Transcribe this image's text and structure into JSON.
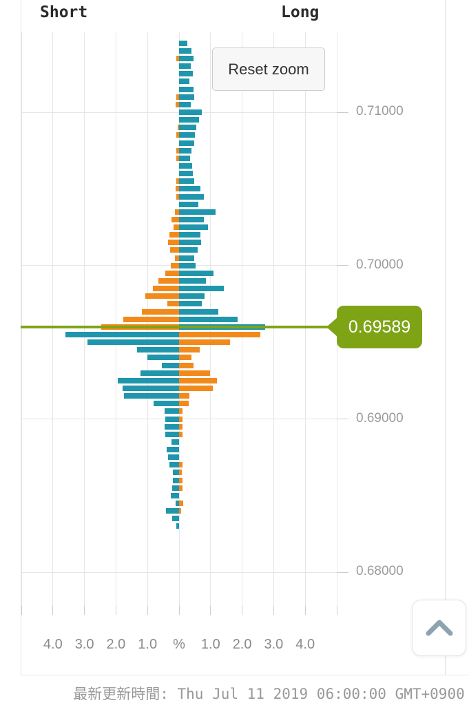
{
  "widget": {
    "reset_zoom_label": "Reset zoom",
    "footer_text": "最新更新時間: Thu Jul 11 2019 06:00:00 GMT+0900",
    "scroll_top_icon": "chevron-up"
  },
  "colors": {
    "teal": "#1f96ac",
    "orange": "#f28a1b",
    "price_green": "#7ea416",
    "grid": "#e5e5ea",
    "axis_text": "#8a8a8a",
    "label_text": "#2b2b2b"
  },
  "chart_data": {
    "type": "bar",
    "subtype": "horizontal-population-pyramid",
    "description": "Open positions ratio (%) by price level; left side = Short positions, right side = Long positions; colors follow win/lose rule around current price",
    "legend": {
      "short": "Short",
      "long": "Long"
    },
    "current_price": 0.69589,
    "current_price_label": "0.69589",
    "x_axis": {
      "unit": "%",
      "tick_labels": [
        "4.0",
        "3.0",
        "2.0",
        "1.0",
        "%",
        "1.0",
        "2.0",
        "3.0",
        "4.0"
      ],
      "tick_values": [
        -4,
        -3,
        -2,
        -1,
        0,
        1,
        2,
        3,
        4
      ],
      "range": [
        -5,
        5
      ],
      "grid": true
    },
    "y_axis": {
      "side": "right",
      "tick_labels": [
        "0.71000",
        "0.70000",
        "0.69000",
        "0.68000"
      ],
      "tick_values": [
        0.71,
        0.7,
        0.69,
        0.68
      ]
    },
    "color_rule": {
      "above_current_price": {
        "short": "orange",
        "long": "teal"
      },
      "below_current_price": {
        "short": "teal",
        "long": "orange"
      }
    },
    "rows": [
      {
        "price": 0.7145,
        "short_pct": 0,
        "long_pct": 0.26
      },
      {
        "price": 0.714,
        "short_pct": 0,
        "long_pct": 0.39
      },
      {
        "price": 0.7135,
        "short_pct": 0.09,
        "long_pct": 0.46
      },
      {
        "price": 0.713,
        "short_pct": 0,
        "long_pct": 0.37
      },
      {
        "price": 0.7125,
        "short_pct": 0,
        "long_pct": 0.44
      },
      {
        "price": 0.712,
        "short_pct": 0,
        "long_pct": 0.33
      },
      {
        "price": 0.7115,
        "short_pct": 0,
        "long_pct": 0.46
      },
      {
        "price": 0.711,
        "short_pct": 0.09,
        "long_pct": 0.48
      },
      {
        "price": 0.7105,
        "short_pct": 0.11,
        "long_pct": 0.37
      },
      {
        "price": 0.71,
        "short_pct": 0,
        "long_pct": 0.72
      },
      {
        "price": 0.7095,
        "short_pct": 0,
        "long_pct": 0.63
      },
      {
        "price": 0.709,
        "short_pct": 0.05,
        "long_pct": 0.55
      },
      {
        "price": 0.7085,
        "short_pct": 0.09,
        "long_pct": 0.5
      },
      {
        "price": 0.708,
        "short_pct": 0,
        "long_pct": 0.48
      },
      {
        "price": 0.7075,
        "short_pct": 0.09,
        "long_pct": 0.39
      },
      {
        "price": 0.707,
        "short_pct": 0.09,
        "long_pct": 0.35
      },
      {
        "price": 0.7065,
        "short_pct": 0,
        "long_pct": 0.41
      },
      {
        "price": 0.706,
        "short_pct": 0,
        "long_pct": 0.44
      },
      {
        "price": 0.7055,
        "short_pct": 0.09,
        "long_pct": 0.48
      },
      {
        "price": 0.705,
        "short_pct": 0.12,
        "long_pct": 0.68
      },
      {
        "price": 0.7045,
        "short_pct": 0.09,
        "long_pct": 0.79
      },
      {
        "price": 0.704,
        "short_pct": 0,
        "long_pct": 0.61
      },
      {
        "price": 0.7035,
        "short_pct": 0.14,
        "long_pct": 1.16
      },
      {
        "price": 0.703,
        "short_pct": 0.25,
        "long_pct": 0.79
      },
      {
        "price": 0.7025,
        "short_pct": 0.18,
        "long_pct": 0.92
      },
      {
        "price": 0.702,
        "short_pct": 0.31,
        "long_pct": 0.68
      },
      {
        "price": 0.7015,
        "short_pct": 0.36,
        "long_pct": 0.7
      },
      {
        "price": 0.701,
        "short_pct": 0.28,
        "long_pct": 0.59
      },
      {
        "price": 0.7005,
        "short_pct": 0.13,
        "long_pct": 0.48
      },
      {
        "price": 0.7,
        "short_pct": 0.27,
        "long_pct": 0.52
      },
      {
        "price": 0.6995,
        "short_pct": 0.44,
        "long_pct": 1.09
      },
      {
        "price": 0.699,
        "short_pct": 0.65,
        "long_pct": 0.85
      },
      {
        "price": 0.6985,
        "short_pct": 0.83,
        "long_pct": 1.42
      },
      {
        "price": 0.698,
        "short_pct": 1.07,
        "long_pct": 0.81
      },
      {
        "price": 0.6975,
        "short_pct": 0.37,
        "long_pct": 0.72
      },
      {
        "price": 0.697,
        "short_pct": 1.18,
        "long_pct": 1.25
      },
      {
        "price": 0.6965,
        "short_pct": 1.77,
        "long_pct": 1.86
      },
      {
        "price": 0.696,
        "short_pct": 2.47,
        "long_pct": 2.73
      },
      {
        "price": 0.6955,
        "short_pct": 3.6,
        "long_pct": 2.58
      },
      {
        "price": 0.695,
        "short_pct": 2.9,
        "long_pct": 1.62
      },
      {
        "price": 0.6945,
        "short_pct": 1.33,
        "long_pct": 0.66
      },
      {
        "price": 0.694,
        "short_pct": 1.0,
        "long_pct": 0.39
      },
      {
        "price": 0.6935,
        "short_pct": 0.55,
        "long_pct": 0.46
      },
      {
        "price": 0.693,
        "short_pct": 1.22,
        "long_pct": 0.98
      },
      {
        "price": 0.6925,
        "short_pct": 1.94,
        "long_pct": 1.2
      },
      {
        "price": 0.692,
        "short_pct": 1.79,
        "long_pct": 1.07
      },
      {
        "price": 0.6915,
        "short_pct": 1.75,
        "long_pct": 0.33
      },
      {
        "price": 0.691,
        "short_pct": 0.81,
        "long_pct": 0.31
      },
      {
        "price": 0.6905,
        "short_pct": 0.46,
        "long_pct": 0.11
      },
      {
        "price": 0.69,
        "short_pct": 0.44,
        "long_pct": 0.1
      },
      {
        "price": 0.6895,
        "short_pct": 0.45,
        "long_pct": 0.1
      },
      {
        "price": 0.689,
        "short_pct": 0.43,
        "long_pct": 0.1
      },
      {
        "price": 0.6885,
        "short_pct": 0.23,
        "long_pct": 0
      },
      {
        "price": 0.688,
        "short_pct": 0.4,
        "long_pct": 0
      },
      {
        "price": 0.6875,
        "short_pct": 0.35,
        "long_pct": 0
      },
      {
        "price": 0.687,
        "short_pct": 0.3,
        "long_pct": 0.12
      },
      {
        "price": 0.6865,
        "short_pct": 0.2,
        "long_pct": 0.08
      },
      {
        "price": 0.686,
        "short_pct": 0.2,
        "long_pct": 0.1
      },
      {
        "price": 0.6855,
        "short_pct": 0.22,
        "long_pct": 0.1
      },
      {
        "price": 0.685,
        "short_pct": 0.27,
        "long_pct": 0
      },
      {
        "price": 0.6845,
        "short_pct": 0.12,
        "long_pct": 0.13
      },
      {
        "price": 0.684,
        "short_pct": 0.42,
        "long_pct": 0.06
      },
      {
        "price": 0.6835,
        "short_pct": 0.22,
        "long_pct": 0
      },
      {
        "price": 0.683,
        "short_pct": 0.08,
        "long_pct": 0
      }
    ]
  }
}
